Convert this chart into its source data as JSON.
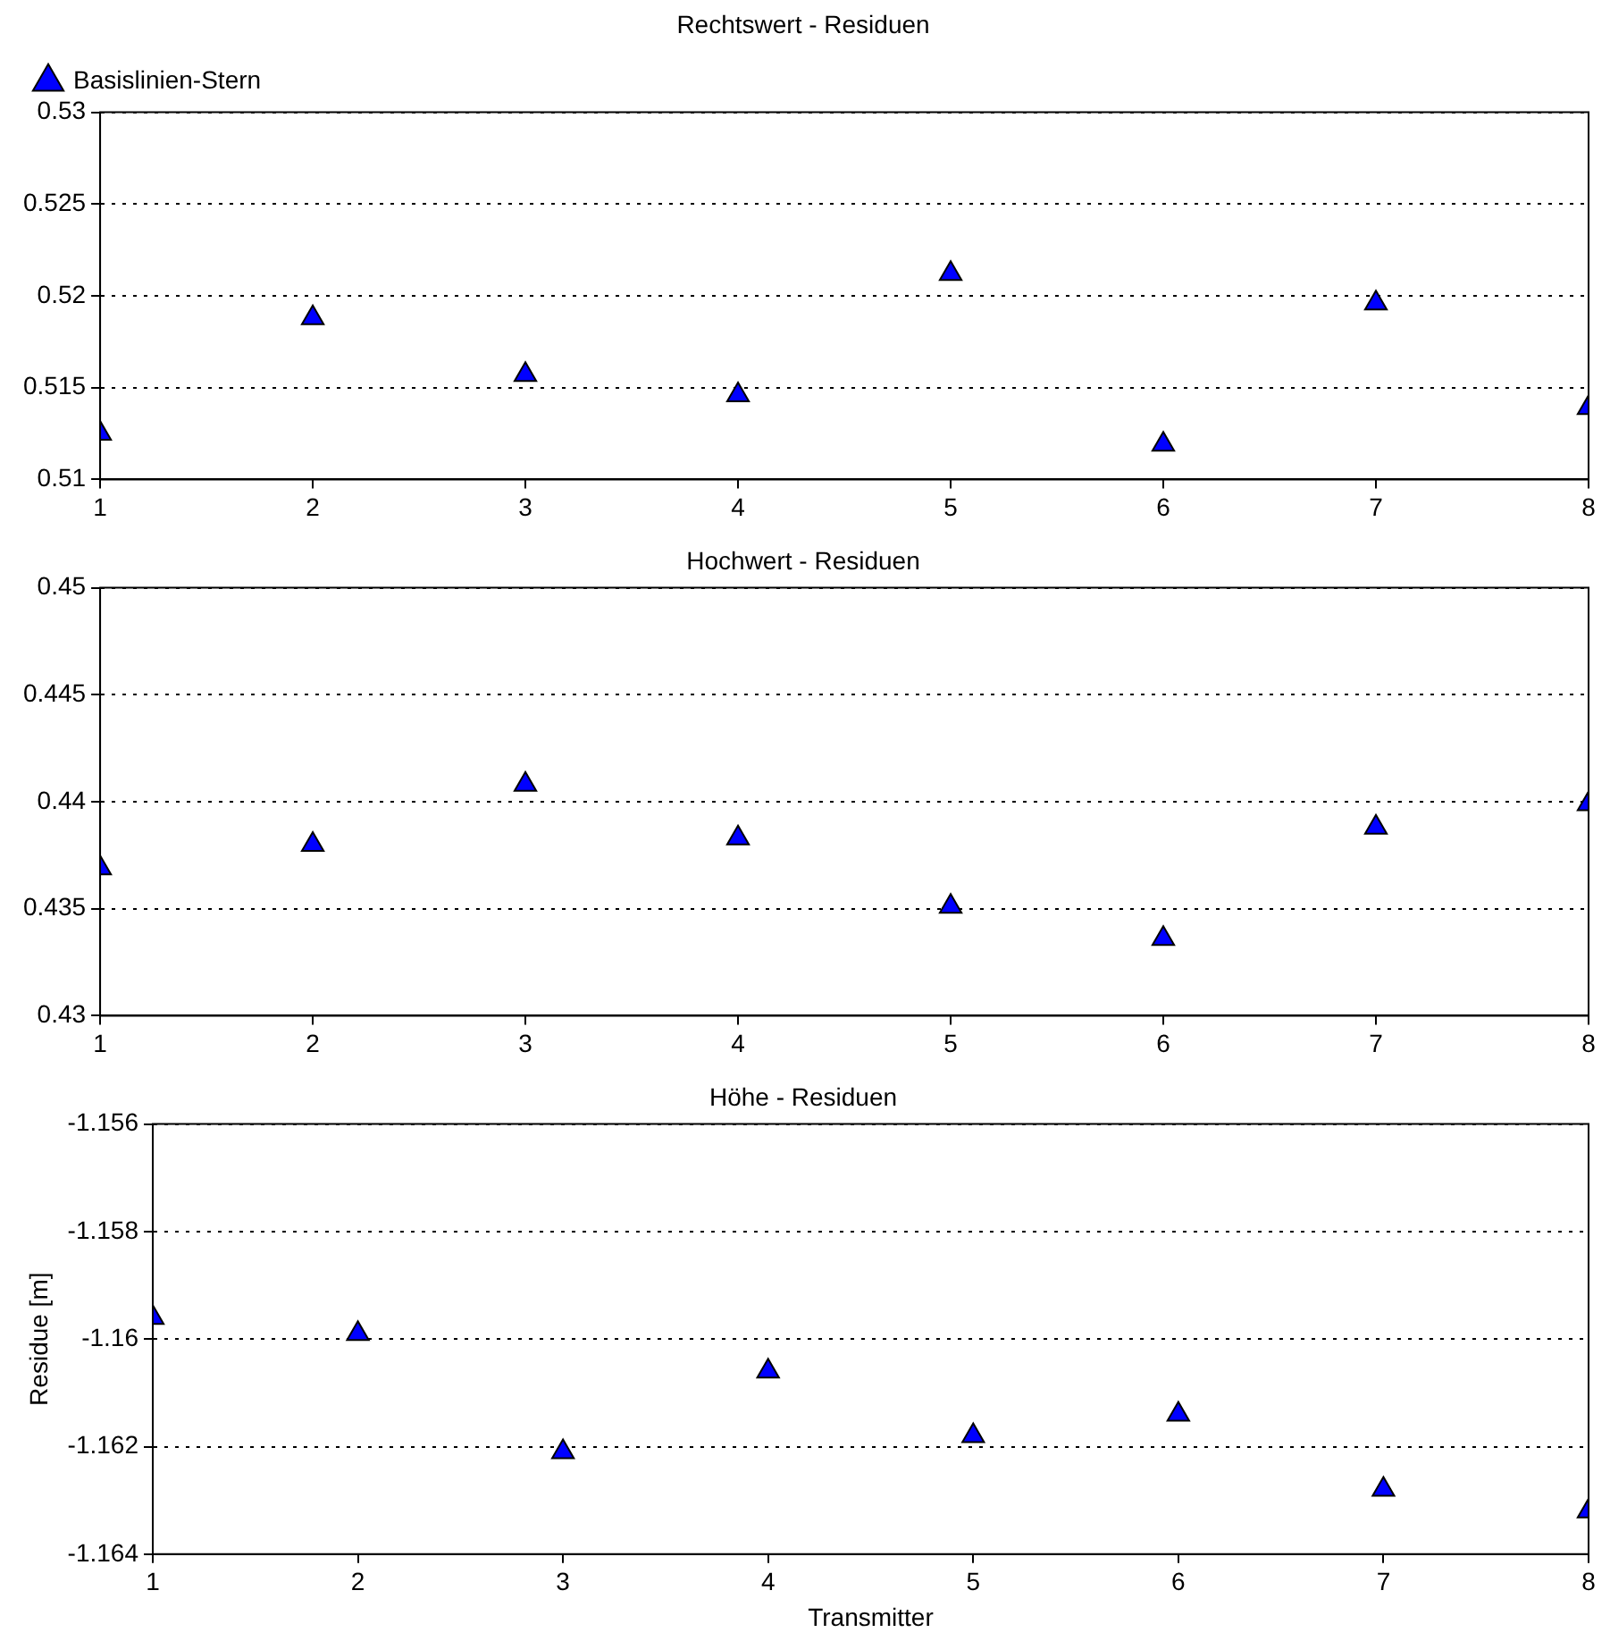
{
  "chart_data": [
    {
      "type": "scatter",
      "title": "Rechtswert - Residuen",
      "x": [
        1,
        2,
        3,
        4,
        5,
        6,
        7,
        8
      ],
      "xlim": [
        1,
        8
      ],
      "xticks": [
        1,
        2,
        3,
        4,
        5,
        6,
        7,
        8
      ],
      "ylim": [
        0.51,
        0.53
      ],
      "yticks": [
        0.51,
        0.515,
        0.52,
        0.525,
        0.53
      ],
      "grid": "y",
      "legend": "top left",
      "marker": "triangle",
      "series": [
        {
          "name": "Basislinien-Stern",
          "color": "#0000ff",
          "values": [
            0.5125,
            0.5188,
            0.5157,
            0.5146,
            0.5212,
            0.5119,
            0.5196,
            0.5139
          ]
        }
      ]
    },
    {
      "type": "scatter",
      "title": "Hochwert - Residuen",
      "x": [
        1,
        2,
        3,
        4,
        5,
        6,
        7,
        8
      ],
      "xlim": [
        1,
        8
      ],
      "xticks": [
        1,
        2,
        3,
        4,
        5,
        6,
        7,
        8
      ],
      "ylim": [
        0.43,
        0.45
      ],
      "yticks": [
        0.43,
        0.435,
        0.44,
        0.445,
        0.45
      ],
      "grid": "y",
      "marker": "triangle",
      "series": [
        {
          "color": "#0000ff",
          "values": [
            0.4369,
            0.438,
            0.4408,
            0.4383,
            0.4351,
            0.4336,
            0.4388,
            0.4399
          ]
        }
      ]
    },
    {
      "type": "scatter",
      "title": "Höhe - Residuen",
      "xlabel": "Transmitter",
      "ylabel": "Residue [m]",
      "x": [
        1,
        2,
        3,
        4,
        5,
        6,
        7,
        8
      ],
      "xlim": [
        1,
        8
      ],
      "xticks": [
        1,
        2,
        3,
        4,
        5,
        6,
        7,
        8
      ],
      "ylim": [
        -1.164,
        -1.156
      ],
      "yticks": [
        -1.164,
        -1.162,
        -1.16,
        -1.158,
        -1.156
      ],
      "grid": "y",
      "marker": "triangle",
      "series": [
        {
          "color": "#0000ff",
          "values": [
            -1.1596,
            -1.1599,
            -1.1621,
            -1.1606,
            -1.1618,
            -1.1614,
            -1.1628,
            -1.1632
          ]
        }
      ]
    }
  ]
}
